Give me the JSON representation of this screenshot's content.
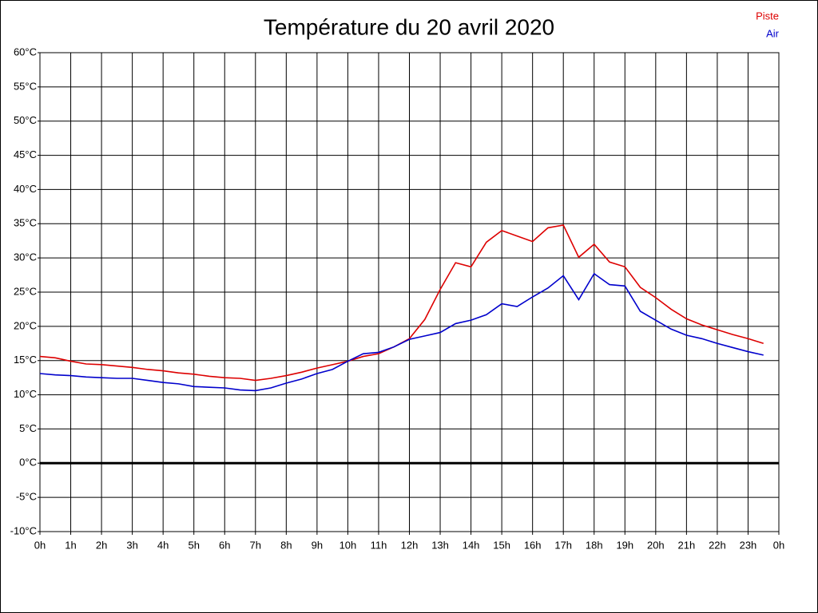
{
  "chart_data": {
    "type": "line",
    "title": "Température du 20 avril 2020",
    "x": [
      0,
      0.5,
      1,
      1.5,
      2,
      2.5,
      3,
      3.5,
      4,
      4.5,
      5,
      5.5,
      6,
      6.5,
      7,
      7.5,
      8,
      8.5,
      9,
      9.5,
      10,
      10.5,
      11,
      11.5,
      12,
      12.5,
      13,
      13.5,
      14,
      14.5,
      15,
      15.5,
      16,
      16.5,
      17,
      17.5,
      18,
      18.5,
      19,
      19.5,
      20,
      20.5,
      21,
      21.5,
      22,
      22.5,
      23,
      23.5
    ],
    "series": [
      {
        "name": "Piste",
        "color": "#dd0000",
        "values": [
          15.6,
          15.4,
          14.9,
          14.5,
          14.4,
          14.2,
          14.0,
          13.7,
          13.5,
          13.2,
          13.0,
          12.7,
          12.5,
          12.4,
          12.1,
          12.4,
          12.8,
          13.3,
          13.9,
          14.4,
          14.9,
          15.6,
          16.0,
          17.0,
          18.2,
          21.0,
          25.4,
          29.3,
          28.7,
          32.3,
          34.0,
          33.2,
          32.4,
          34.4,
          34.8,
          30.1,
          32.0,
          29.4,
          28.7,
          25.7,
          24.2,
          22.5,
          21.1,
          20.2,
          19.5,
          18.8,
          18.2,
          17.5
        ]
      },
      {
        "name": "Air",
        "color": "#0000cc",
        "values": [
          13.1,
          12.9,
          12.8,
          12.6,
          12.5,
          12.4,
          12.4,
          12.1,
          11.8,
          11.6,
          11.2,
          11.1,
          11.0,
          10.7,
          10.6,
          11.0,
          11.7,
          12.3,
          13.1,
          13.7,
          14.9,
          16.0,
          16.2,
          17.0,
          18.1,
          18.6,
          19.1,
          20.4,
          20.9,
          21.7,
          23.3,
          22.9,
          24.3,
          25.6,
          27.4,
          23.9,
          27.7,
          26.1,
          25.9,
          22.2,
          20.9,
          19.6,
          18.7,
          18.2,
          17.5,
          16.9,
          16.3,
          15.8
        ]
      }
    ],
    "xlim": [
      0,
      24
    ],
    "xticks": [
      {
        "value": 0,
        "label": "0h"
      },
      {
        "value": 1,
        "label": "1h"
      },
      {
        "value": 2,
        "label": "2h"
      },
      {
        "value": 3,
        "label": "3h"
      },
      {
        "value": 4,
        "label": "4h"
      },
      {
        "value": 5,
        "label": "5h"
      },
      {
        "value": 6,
        "label": "6h"
      },
      {
        "value": 7,
        "label": "7h"
      },
      {
        "value": 8,
        "label": "8h"
      },
      {
        "value": 9,
        "label": "9h"
      },
      {
        "value": 10,
        "label": "10h"
      },
      {
        "value": 11,
        "label": "11h"
      },
      {
        "value": 12,
        "label": "12h"
      },
      {
        "value": 13,
        "label": "13h"
      },
      {
        "value": 14,
        "label": "14h"
      },
      {
        "value": 15,
        "label": "15h"
      },
      {
        "value": 16,
        "label": "16h"
      },
      {
        "value": 17,
        "label": "17h"
      },
      {
        "value": 18,
        "label": "18h"
      },
      {
        "value": 19,
        "label": "19h"
      },
      {
        "value": 20,
        "label": "20h"
      },
      {
        "value": 21,
        "label": "21h"
      },
      {
        "value": 22,
        "label": "22h"
      },
      {
        "value": 23,
        "label": "23h"
      },
      {
        "value": 24,
        "label": "0h"
      }
    ],
    "ylim": [
      -10,
      60
    ],
    "yticks": [
      {
        "value": 60,
        "label": "60°C"
      },
      {
        "value": 55,
        "label": "55°C"
      },
      {
        "value": 50,
        "label": "50°C"
      },
      {
        "value": 45,
        "label": "45°C"
      },
      {
        "value": 40,
        "label": "40°C"
      },
      {
        "value": 35,
        "label": "35°C"
      },
      {
        "value": 30,
        "label": "30°C"
      },
      {
        "value": 25,
        "label": "25°C"
      },
      {
        "value": 20,
        "label": "20°C"
      },
      {
        "value": 15,
        "label": "15°C"
      },
      {
        "value": 10,
        "label": "10°C"
      },
      {
        "value": 5,
        "label": "5°C"
      },
      {
        "value": 0,
        "label": "0°C"
      },
      {
        "value": -5,
        "label": "-5°C"
      },
      {
        "value": -10,
        "label": "-10°C"
      }
    ],
    "grid": true,
    "legend": "top-right"
  }
}
